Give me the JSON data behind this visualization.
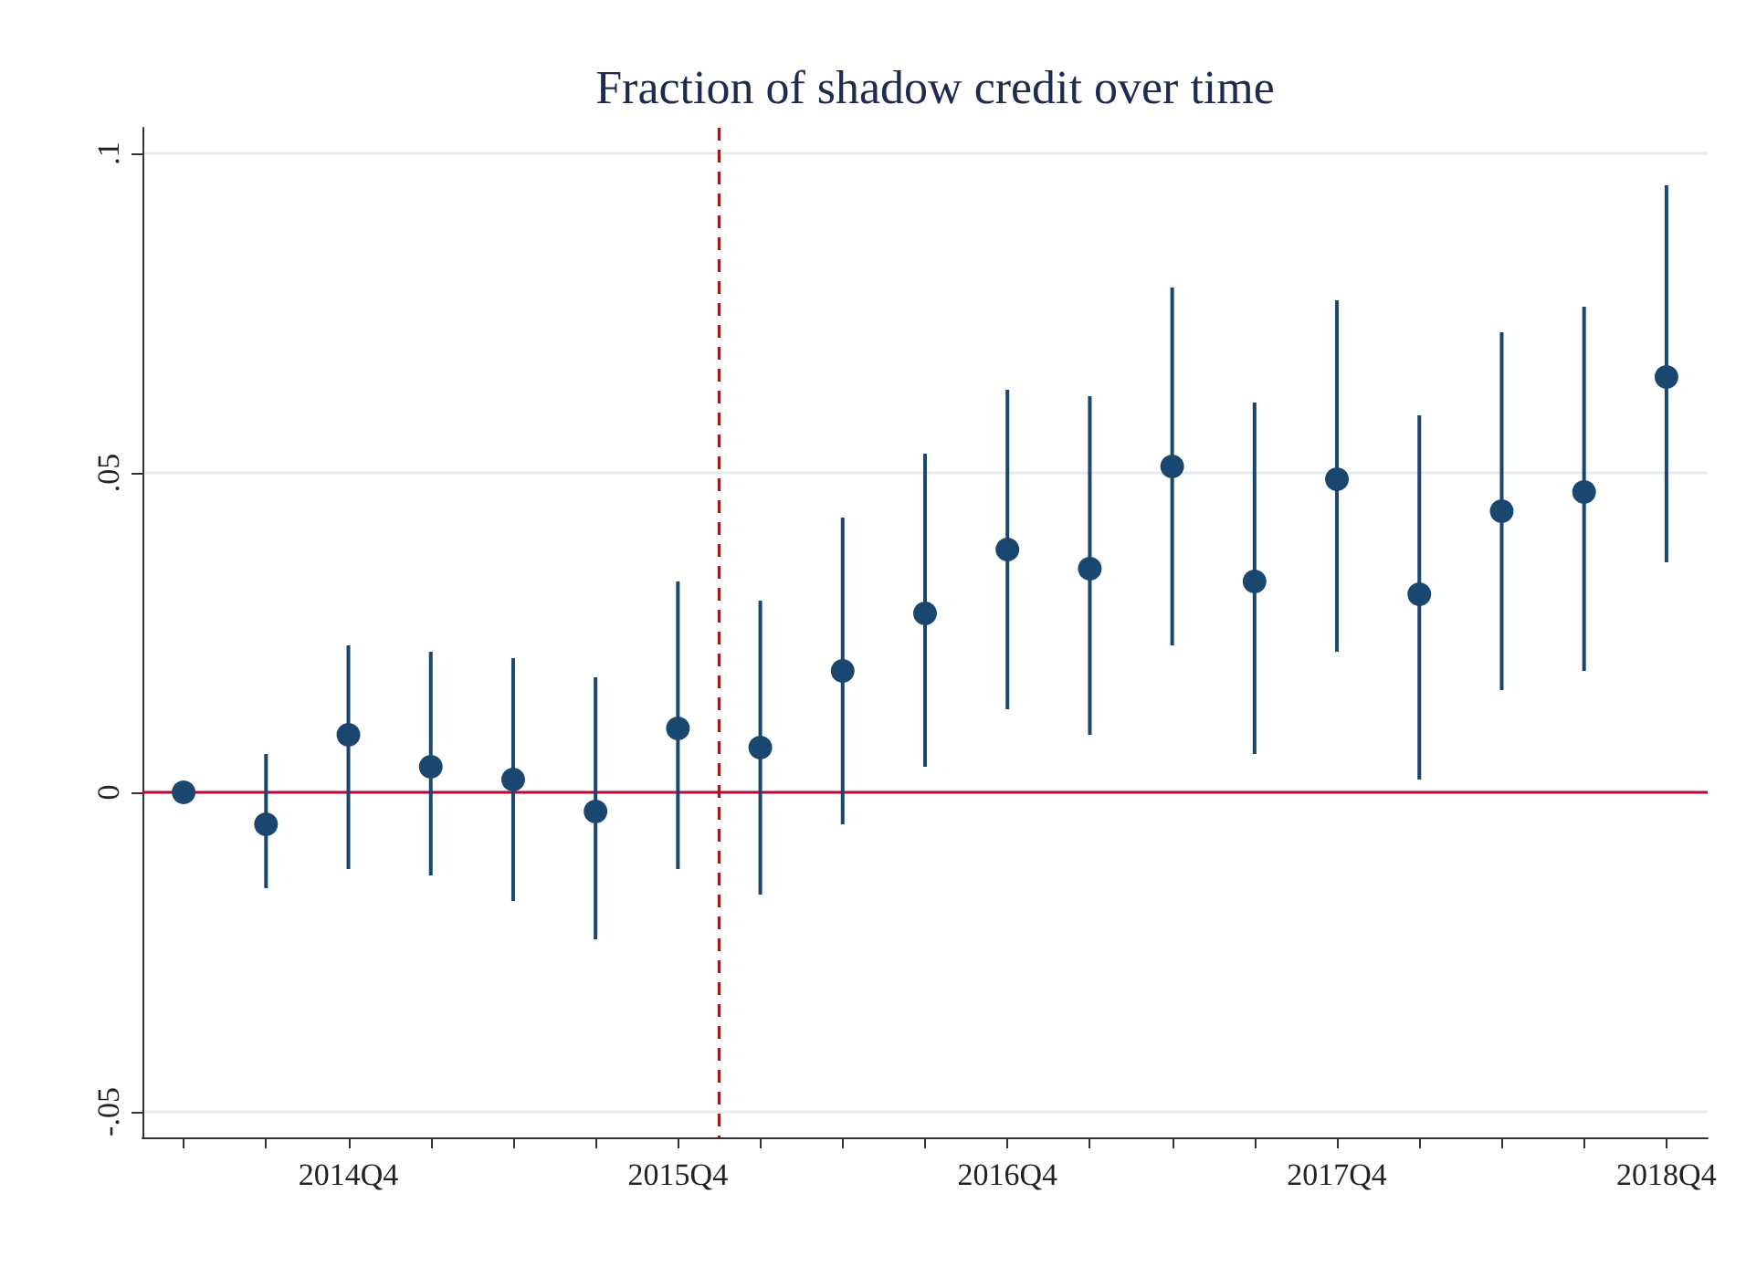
{
  "chart_data": {
    "type": "scatter",
    "title": "Fraction of shadow credit over time",
    "categories": [
      null,
      null,
      "2014Q4",
      null,
      null,
      null,
      "2015Q4",
      null,
      null,
      null,
      "2016Q4",
      null,
      null,
      null,
      "2017Q4",
      null,
      null,
      null,
      "2018Q4"
    ],
    "values": [
      0,
      -0.005,
      0.009,
      0.004,
      0.002,
      -0.003,
      0.01,
      0.007,
      0.019,
      0.028,
      0.038,
      0.035,
      0.051,
      0.033,
      0.049,
      0.031,
      0.044,
      0.047,
      0.065
    ],
    "errors": [
      null,
      [
        -0.015,
        0.006
      ],
      [
        -0.012,
        0.023
      ],
      [
        -0.013,
        0.022
      ],
      [
        -0.017,
        0.021
      ],
      [
        -0.023,
        0.018
      ],
      [
        -0.012,
        0.033
      ],
      [
        -0.016,
        0.03
      ],
      [
        -0.005,
        0.043
      ],
      [
        0.004,
        0.053
      ],
      [
        0.013,
        0.063
      ],
      [
        0.009,
        0.062
      ],
      [
        0.023,
        0.079
      ],
      [
        0.006,
        0.061
      ],
      [
        0.022,
        0.077
      ],
      [
        0.002,
        0.059
      ],
      [
        0.016,
        0.072
      ],
      [
        0.019,
        0.076
      ],
      [
        0.036,
        0.095
      ]
    ],
    "color": "#1a476f",
    "marker": "circle",
    "ylim": [
      -0.054,
      0.104
    ],
    "yticks": [
      {
        "value": -0.05,
        "label": "-.05"
      },
      {
        "value": 0,
        "label": "0"
      },
      {
        "value": 0.05,
        "label": ".05"
      },
      {
        "value": 0.1,
        "label": ".1"
      }
    ],
    "grid": "y",
    "ref_lines": [
      {
        "axis": "y",
        "value": 0,
        "label": null,
        "color": "#c10534",
        "line_style": "solid"
      },
      {
        "axis": "x",
        "value": "2015Q4",
        "label": null,
        "color": "#9b1c1c",
        "line_style": "dashed"
      }
    ]
  }
}
